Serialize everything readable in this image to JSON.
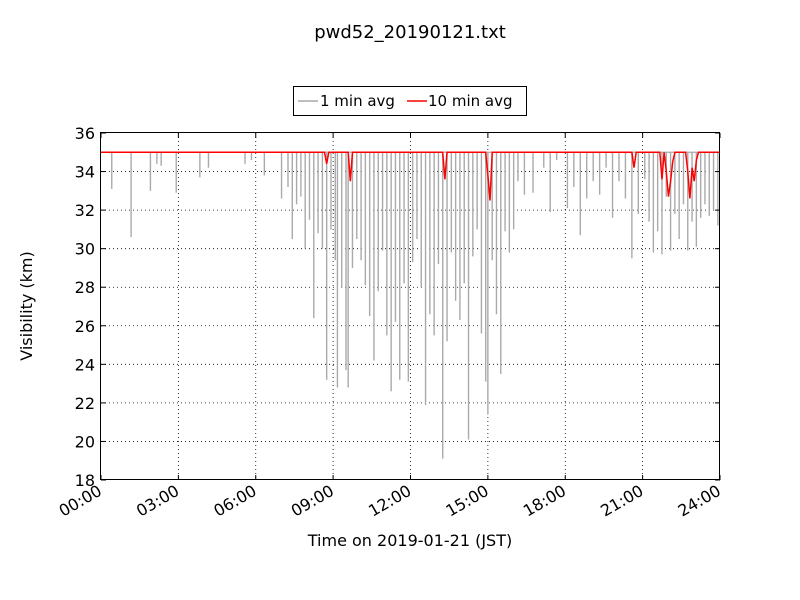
{
  "chart_data": {
    "type": "line",
    "title": "pwd52_20190121.txt",
    "xlabel": "Time on 2019-01-21 (JST)",
    "ylabel": "Visibility (km)",
    "xlim": [
      "2019-01-21T00:00",
      "2019-01-22T00:00"
    ],
    "ylim": [
      18,
      36
    ],
    "x_ticks": [
      "00:00",
      "03:00",
      "06:00",
      "09:00",
      "12:00",
      "15:00",
      "18:00",
      "21:00",
      "24:00"
    ],
    "y_ticks": [
      18,
      20,
      22,
      24,
      26,
      28,
      30,
      32,
      34,
      36
    ],
    "grid": true,
    "legend_position": "top-center",
    "series": [
      {
        "name": "1 min avg",
        "color": "#aaaaaa",
        "baseline": 35,
        "points": [
          [
            "00:25",
            33.1
          ],
          [
            "01:10",
            30.6
          ],
          [
            "01:55",
            33.0
          ],
          [
            "02:10",
            34.4
          ],
          [
            "02:20",
            34.3
          ],
          [
            "02:55",
            32.9
          ],
          [
            "03:50",
            33.7
          ],
          [
            "04:10",
            34.2
          ],
          [
            "05:35",
            34.4
          ],
          [
            "05:50",
            34.6
          ],
          [
            "06:20",
            33.8
          ],
          [
            "07:00",
            32.6
          ],
          [
            "07:15",
            33.2
          ],
          [
            "07:25",
            30.5
          ],
          [
            "07:35",
            32.3
          ],
          [
            "07:45",
            32.7
          ],
          [
            "07:55",
            30.0
          ],
          [
            "08:05",
            31.5
          ],
          [
            "08:15",
            26.4
          ],
          [
            "08:25",
            30.8
          ],
          [
            "08:35",
            30.0
          ],
          [
            "08:45",
            23.2
          ],
          [
            "08:55",
            31.0
          ],
          [
            "09:05",
            29.4
          ],
          [
            "09:10",
            22.8
          ],
          [
            "09:20",
            28.0
          ],
          [
            "09:30",
            23.7
          ],
          [
            "09:35",
            22.8
          ],
          [
            "09:45",
            29.0
          ],
          [
            "09:55",
            30.5
          ],
          [
            "10:05",
            29.4
          ],
          [
            "10:15",
            28.1
          ],
          [
            "10:25",
            26.5
          ],
          [
            "10:35",
            24.2
          ],
          [
            "10:45",
            27.8
          ],
          [
            "10:55",
            29.9
          ],
          [
            "11:05",
            25.5
          ],
          [
            "11:15",
            22.6
          ],
          [
            "11:25",
            26.2
          ],
          [
            "11:35",
            23.2
          ],
          [
            "11:45",
            28.2
          ],
          [
            "11:55",
            23.1
          ],
          [
            "12:05",
            29.3
          ],
          [
            "12:15",
            30.5
          ],
          [
            "12:25",
            28.0
          ],
          [
            "12:35",
            21.9
          ],
          [
            "12:45",
            26.6
          ],
          [
            "12:55",
            25.5
          ],
          [
            "13:05",
            29.2
          ],
          [
            "13:15",
            19.1
          ],
          [
            "13:25",
            25.2
          ],
          [
            "13:35",
            29.8
          ],
          [
            "13:45",
            27.3
          ],
          [
            "13:55",
            26.3
          ],
          [
            "14:05",
            28.2
          ],
          [
            "14:15",
            20.1
          ],
          [
            "14:25",
            29.6
          ],
          [
            "14:35",
            31.0
          ],
          [
            "14:45",
            25.6
          ],
          [
            "14:55",
            23.1
          ],
          [
            "15:00",
            21.4
          ],
          [
            "15:10",
            29.4
          ],
          [
            "15:20",
            26.6
          ],
          [
            "15:30",
            23.5
          ],
          [
            "15:40",
            30.9
          ],
          [
            "15:50",
            29.8
          ],
          [
            "16:00",
            31.0
          ],
          [
            "16:10",
            33.5
          ],
          [
            "16:25",
            32.8
          ],
          [
            "16:45",
            32.9
          ],
          [
            "17:10",
            34.2
          ],
          [
            "17:25",
            31.9
          ],
          [
            "17:40",
            34.6
          ],
          [
            "18:05",
            32.1
          ],
          [
            "18:20",
            33.2
          ],
          [
            "18:35",
            30.7
          ],
          [
            "18:50",
            32.6
          ],
          [
            "19:05",
            33.5
          ],
          [
            "19:20",
            32.8
          ],
          [
            "19:35",
            34.2
          ],
          [
            "19:50",
            31.6
          ],
          [
            "20:05",
            33.5
          ],
          [
            "20:20",
            32.6
          ],
          [
            "20:35",
            29.5
          ],
          [
            "20:50",
            31.8
          ],
          [
            "21:05",
            33.6
          ],
          [
            "21:15",
            31.4
          ],
          [
            "21:25",
            29.8
          ],
          [
            "21:35",
            30.9
          ],
          [
            "21:45",
            29.7
          ],
          [
            "21:55",
            32.7
          ],
          [
            "22:05",
            29.9
          ],
          [
            "22:15",
            31.8
          ],
          [
            "22:25",
            30.5
          ],
          [
            "22:35",
            32.3
          ],
          [
            "22:45",
            29.9
          ],
          [
            "22:55",
            31.4
          ],
          [
            "23:05",
            30.1
          ],
          [
            "23:15",
            31.6
          ],
          [
            "23:25",
            32.3
          ],
          [
            "23:35",
            31.7
          ],
          [
            "23:45",
            32.0
          ],
          [
            "23:55",
            31.2
          ]
        ]
      },
      {
        "name": "10 min avg",
        "color": "#ff0000",
        "points": [
          [
            "00:00",
            35.0
          ],
          [
            "08:40",
            35.0
          ],
          [
            "08:45",
            34.4
          ],
          [
            "08:50",
            35.0
          ],
          [
            "09:35",
            35.0
          ],
          [
            "09:40",
            33.5
          ],
          [
            "09:45",
            35.0
          ],
          [
            "13:15",
            35.0
          ],
          [
            "13:20",
            33.6
          ],
          [
            "13:25",
            35.0
          ],
          [
            "14:55",
            35.0
          ],
          [
            "15:00",
            33.8
          ],
          [
            "15:05",
            32.5
          ],
          [
            "15:10",
            35.0
          ],
          [
            "20:35",
            35.0
          ],
          [
            "20:40",
            34.2
          ],
          [
            "20:45",
            35.0
          ],
          [
            "21:40",
            35.0
          ],
          [
            "21:45",
            33.6
          ],
          [
            "21:50",
            35.0
          ],
          [
            "21:55",
            34.0
          ],
          [
            "22:00",
            32.7
          ],
          [
            "22:05",
            33.5
          ],
          [
            "22:10",
            34.5
          ],
          [
            "22:15",
            35.0
          ],
          [
            "22:40",
            35.0
          ],
          [
            "22:45",
            34.0
          ],
          [
            "22:50",
            32.6
          ],
          [
            "22:55",
            34.2
          ],
          [
            "23:00",
            33.5
          ],
          [
            "23:05",
            34.6
          ],
          [
            "23:10",
            35.0
          ],
          [
            "24:00",
            35.0
          ]
        ]
      }
    ]
  }
}
